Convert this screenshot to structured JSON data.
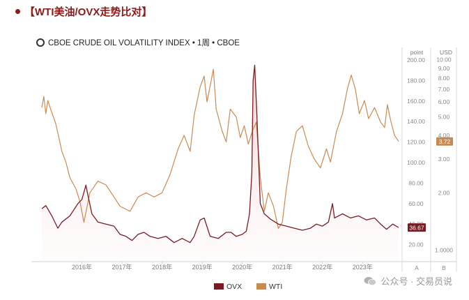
{
  "header": {
    "title": "【WTI美油/OVX走势比对】",
    "subtitle": "CBOE CRUDE OIL VOLATILITY INDEX • 1周 • CBOE"
  },
  "watermark": {
    "text": "公众号 · 交易员说",
    "icon": "wechat-icon"
  },
  "colors": {
    "ovx": "#7a1a22",
    "wti": "#c98a52",
    "title": "#8b1a1a",
    "ovx_fill": "#f4d6d6",
    "wti_badge": "#c98a52",
    "ovx_badge": "#7a1a22"
  },
  "chart_data": {
    "type": "line",
    "title": "CBOE CRUDE OIL VOLATILITY INDEX",
    "x_labels": [
      "2016年",
      "2017年",
      "2018年",
      "2019年",
      "2020年",
      "2021年",
      "2022年",
      "2023年"
    ],
    "x_range": [
      2015.0,
      2023.9
    ],
    "axis_a": {
      "unit": "point",
      "ticks": [
        "200.00",
        "180.00",
        "160.00",
        "140.00",
        "120.00",
        "100.00",
        "80.00",
        "60.00",
        "40.00",
        "20.00"
      ],
      "range": [
        0,
        200
      ],
      "footer": "A"
    },
    "axis_b": {
      "unit": "USD",
      "ticks": [
        "10.00",
        "9.00",
        "8.00",
        "7.00",
        "6.00",
        "5.00",
        "4.00",
        "3.00",
        "2.00",
        "1.0000"
      ],
      "scale": "log",
      "footer": "B"
    },
    "series": [
      {
        "name": "OVX",
        "axis": "A",
        "last_value_label": "36.67",
        "points": [
          [
            2015.0,
            55
          ],
          [
            2015.1,
            58
          ],
          [
            2015.25,
            48
          ],
          [
            2015.4,
            36
          ],
          [
            2015.5,
            42
          ],
          [
            2015.7,
            48
          ],
          [
            2015.9,
            60
          ],
          [
            2016.0,
            64
          ],
          [
            2016.1,
            78
          ],
          [
            2016.14,
            70
          ],
          [
            2016.25,
            50
          ],
          [
            2016.4,
            42
          ],
          [
            2016.6,
            40
          ],
          [
            2016.8,
            38
          ],
          [
            2016.95,
            30
          ],
          [
            2017.1,
            28
          ],
          [
            2017.25,
            24
          ],
          [
            2017.4,
            30
          ],
          [
            2017.55,
            32
          ],
          [
            2017.7,
            28
          ],
          [
            2017.9,
            26
          ],
          [
            2018.1,
            28
          ],
          [
            2018.3,
            22
          ],
          [
            2018.5,
            26
          ],
          [
            2018.7,
            22
          ],
          [
            2018.8,
            28
          ],
          [
            2018.95,
            44
          ],
          [
            2019.05,
            46
          ],
          [
            2019.2,
            28
          ],
          [
            2019.4,
            26
          ],
          [
            2019.6,
            32
          ],
          [
            2019.72,
            32
          ],
          [
            2019.85,
            28
          ],
          [
            2020.0,
            30
          ],
          [
            2020.1,
            33
          ],
          [
            2020.18,
            50
          ],
          [
            2020.24,
            90
          ],
          [
            2020.27,
            180
          ],
          [
            2020.31,
            195
          ],
          [
            2020.36,
            150
          ],
          [
            2020.45,
            60
          ],
          [
            2020.55,
            50
          ],
          [
            2020.7,
            45
          ],
          [
            2020.9,
            40
          ],
          [
            2021.1,
            38
          ],
          [
            2021.3,
            36
          ],
          [
            2021.5,
            34
          ],
          [
            2021.7,
            36
          ],
          [
            2021.85,
            40
          ],
          [
            2022.0,
            38
          ],
          [
            2022.15,
            42
          ],
          [
            2022.25,
            60
          ],
          [
            2022.3,
            46
          ],
          [
            2022.5,
            50
          ],
          [
            2022.7,
            46
          ],
          [
            2022.9,
            48
          ],
          [
            2023.1,
            44
          ],
          [
            2023.3,
            46
          ],
          [
            2023.45,
            40
          ],
          [
            2023.6,
            35
          ],
          [
            2023.75,
            40
          ],
          [
            2023.9,
            36.67
          ]
        ]
      },
      {
        "name": "WTI",
        "axis": "B",
        "last_value_label": "3.72",
        "points": [
          [
            2015.0,
            5.6
          ],
          [
            2015.05,
            6.4
          ],
          [
            2015.1,
            5.2
          ],
          [
            2015.15,
            6.1
          ],
          [
            2015.22,
            5.5
          ],
          [
            2015.35,
            4.6
          ],
          [
            2015.5,
            3.3
          ],
          [
            2015.6,
            2.9
          ],
          [
            2015.7,
            2.4
          ],
          [
            2015.85,
            2.1
          ],
          [
            2015.95,
            1.8
          ],
          [
            2016.05,
            1.4
          ],
          [
            2016.2,
            2.0
          ],
          [
            2016.4,
            2.3
          ],
          [
            2016.6,
            2.2
          ],
          [
            2016.8,
            1.9
          ],
          [
            2016.95,
            1.7
          ],
          [
            2017.2,
            1.6
          ],
          [
            2017.4,
            1.9
          ],
          [
            2017.6,
            2.0
          ],
          [
            2017.8,
            1.9
          ],
          [
            2018.0,
            2.0
          ],
          [
            2018.2,
            2.5
          ],
          [
            2018.4,
            3.4
          ],
          [
            2018.55,
            4.0
          ],
          [
            2018.7,
            3.3
          ],
          [
            2018.8,
            5.1
          ],
          [
            2018.95,
            7.2
          ],
          [
            2019.05,
            8.2
          ],
          [
            2019.12,
            6.0
          ],
          [
            2019.2,
            7.3
          ],
          [
            2019.28,
            8.9
          ],
          [
            2019.35,
            5.5
          ],
          [
            2019.5,
            4.2
          ],
          [
            2019.6,
            3.7
          ],
          [
            2019.7,
            5.5
          ],
          [
            2019.85,
            5.0
          ],
          [
            2019.95,
            3.9
          ],
          [
            2020.05,
            4.5
          ],
          [
            2020.15,
            3.6
          ],
          [
            2020.25,
            4.2
          ],
          [
            2020.35,
            4.7
          ],
          [
            2020.45,
            2.4
          ],
          [
            2020.55,
            1.6
          ],
          [
            2020.65,
            2.0
          ],
          [
            2020.78,
            1.7
          ],
          [
            2020.9,
            1.3
          ],
          [
            2021.0,
            1.4
          ],
          [
            2021.1,
            2.1
          ],
          [
            2021.22,
            3.1
          ],
          [
            2021.35,
            4.2
          ],
          [
            2021.5,
            4.5
          ],
          [
            2021.65,
            3.5
          ],
          [
            2021.8,
            3.0
          ],
          [
            2021.95,
            2.7
          ],
          [
            2022.1,
            3.4
          ],
          [
            2022.2,
            2.9
          ],
          [
            2022.35,
            4.2
          ],
          [
            2022.5,
            5.2
          ],
          [
            2022.62,
            7.0
          ],
          [
            2022.72,
            8.3
          ],
          [
            2022.82,
            7.0
          ],
          [
            2022.92,
            5.2
          ],
          [
            2023.05,
            6.1
          ],
          [
            2023.15,
            4.9
          ],
          [
            2023.3,
            5.6
          ],
          [
            2023.45,
            4.7
          ],
          [
            2023.55,
            4.4
          ],
          [
            2023.62,
            5.8
          ],
          [
            2023.7,
            4.8
          ],
          [
            2023.8,
            4.0
          ],
          [
            2023.9,
            3.72
          ]
        ]
      }
    ],
    "legend": {
      "position": "bottom-center",
      "entries": [
        "OVX",
        "WTI"
      ]
    }
  }
}
